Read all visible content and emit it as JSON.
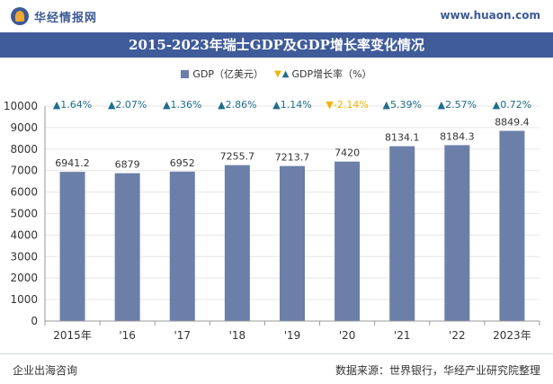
{
  "header": {
    "logo_text": "华经情报网",
    "site_url": "www.huaon.com",
    "title": "2015-2023年瑞士GDP及GDP增长率变化情况"
  },
  "legend": {
    "gdp_label": "GDP（亿美元）",
    "growth_label": "GDP增长率（%）"
  },
  "colors": {
    "bar": "#6b7fa8",
    "growth_up": "#1f6e8c",
    "growth_down": "#f0b400",
    "title_bg": "#3f5b9a"
  },
  "chart_data": {
    "type": "bar",
    "title": "2015-2023年瑞士GDP及GDP增长率变化情况",
    "categories": [
      "2015年",
      "'16",
      "'17",
      "'18",
      "'19",
      "'20",
      "'21",
      "'22",
      "2023年"
    ],
    "series": [
      {
        "name": "GDP（亿美元）",
        "values": [
          6941.2,
          6879,
          6952,
          7255.7,
          7213.7,
          7420,
          8134.1,
          8184.3,
          8849.4
        ],
        "labels": [
          "6941.2",
          "6879",
          "6952",
          "7255.7",
          "7213.7",
          "7420",
          "8134.1",
          "8184.3",
          "8849.4"
        ]
      },
      {
        "name": "GDP增长率（%）",
        "values": [
          1.64,
          2.07,
          1.36,
          2.86,
          1.14,
          -2.14,
          5.39,
          2.57,
          0.72
        ],
        "labels": [
          "▲1.64%",
          "▲2.07%",
          "▲1.36%",
          "▲2.86%",
          "▲1.14%",
          "▼-2.14%",
          "▲5.39%",
          "▲2.57%",
          "▲0.72%"
        ]
      }
    ],
    "ylim": [
      0,
      10000
    ],
    "yticks": [
      0,
      1000,
      2000,
      3000,
      4000,
      5000,
      6000,
      7000,
      8000,
      9000,
      10000
    ],
    "xlabel": "",
    "ylabel": ""
  },
  "footer": {
    "left": "企业出海咨询",
    "right": "数据来源：世界银行，华经产业研究院整理"
  }
}
